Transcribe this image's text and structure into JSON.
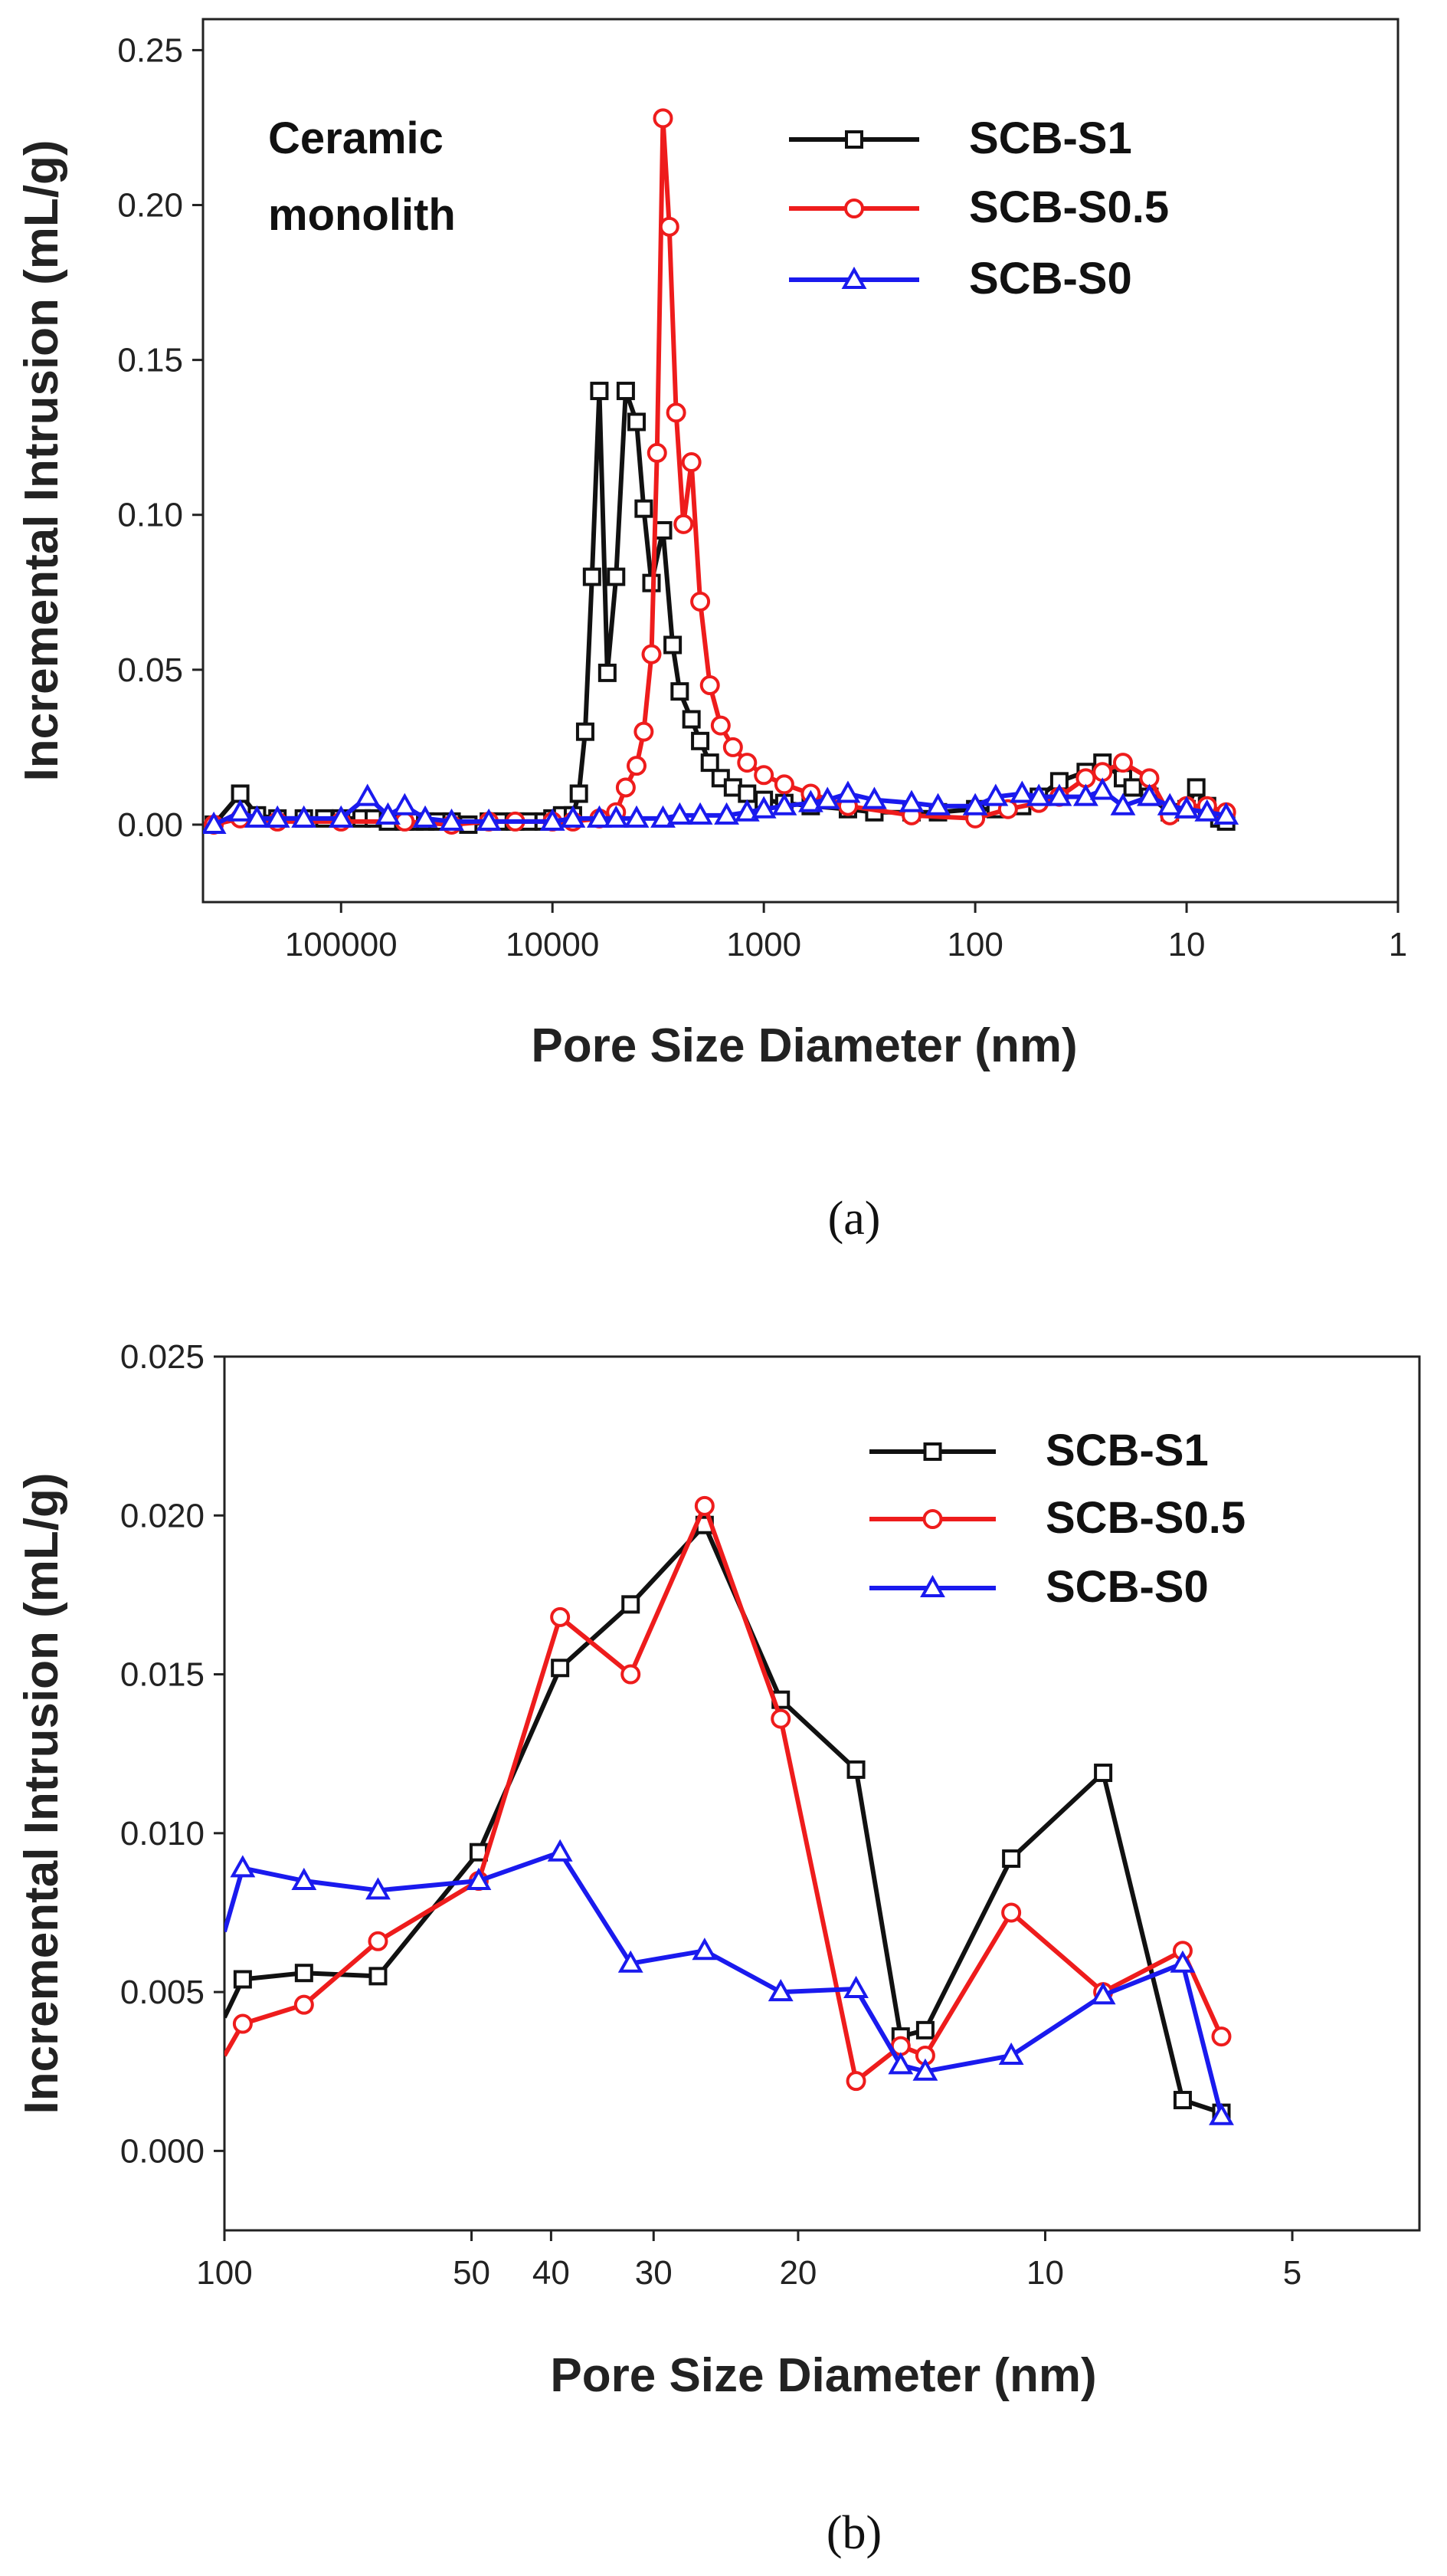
{
  "chart_data": [
    {
      "type": "line",
      "annotation": [
        "Ceramic",
        "monolith"
      ],
      "xlabel": "Pore Size Diameter (nm)",
      "ylabel": "Incremental Intrusion (mL/g)",
      "x_scale": "log-reversed",
      "xlim": [
        450000,
        1
      ],
      "ylim": [
        -0.025,
        0.26
      ],
      "xticks": [
        100000,
        10000,
        1000,
        100,
        10,
        1
      ],
      "xtick_labels": [
        "100000",
        "10000",
        "1000",
        "100",
        "10",
        "1"
      ],
      "yticks": [
        0.0,
        0.05,
        0.1,
        0.15,
        0.2,
        0.25
      ],
      "ytick_labels": [
        "0.00",
        "0.05",
        "0.10",
        "0.15",
        "0.20",
        "0.25"
      ],
      "panel_label": "(a)",
      "legend_position": "top-right",
      "series": [
        {
          "name": "SCB-S1",
          "color": "#111111",
          "marker": "square",
          "x": [
            400000,
            300000,
            250000,
            200000,
            150000,
            120000,
            100000,
            80000,
            70000,
            60000,
            50000,
            45000,
            40000,
            35000,
            30000,
            25000,
            20000,
            18000,
            15000,
            13000,
            11000,
            10000,
            9000,
            8000,
            7500,
            7000,
            6500,
            6000,
            5500,
            5000,
            4500,
            4000,
            3700,
            3400,
            3000,
            2700,
            2500,
            2200,
            2000,
            1800,
            1600,
            1400,
            1200,
            1000,
            800,
            600,
            400,
            300,
            200,
            150,
            100,
            80,
            60,
            50,
            40,
            30,
            25,
            20,
            18,
            15,
            12,
            10,
            9,
            8,
            7,
            6.5
          ],
          "y": [
            0.0,
            0.01,
            0.003,
            0.002,
            0.002,
            0.002,
            0.002,
            0.002,
            0.002,
            0.001,
            0.001,
            0.001,
            0.001,
            0.001,
            0.001,
            0.0,
            0.001,
            0.001,
            0.001,
            0.001,
            0.001,
            0.002,
            0.003,
            0.003,
            0.01,
            0.03,
            0.08,
            0.14,
            0.049,
            0.08,
            0.14,
            0.13,
            0.102,
            0.078,
            0.095,
            0.058,
            0.043,
            0.034,
            0.027,
            0.02,
            0.015,
            0.012,
            0.01,
            0.008,
            0.007,
            0.006,
            0.005,
            0.004,
            0.004,
            0.004,
            0.005,
            0.005,
            0.006,
            0.009,
            0.014,
            0.017,
            0.02,
            0.015,
            0.012,
            0.009,
            0.004,
            0.005,
            0.012,
            0.006,
            0.002,
            0.001
          ]
        },
        {
          "name": "SCB-S0.5",
          "color": "#ee1c1c",
          "marker": "circle",
          "x": [
            400000,
            300000,
            200000,
            100000,
            50000,
            30000,
            20000,
            15000,
            10000,
            8000,
            6000,
            5000,
            4500,
            4000,
            3700,
            3400,
            3200,
            3000,
            2800,
            2600,
            2400,
            2200,
            2000,
            1800,
            1600,
            1400,
            1200,
            1000,
            800,
            600,
            400,
            200,
            100,
            70,
            50,
            40,
            30,
            25,
            20,
            15,
            12,
            10,
            8,
            6.5
          ],
          "y": [
            0.0,
            0.002,
            0.001,
            0.001,
            0.001,
            0.0,
            0.001,
            0.001,
            0.001,
            0.001,
            0.002,
            0.004,
            0.012,
            0.019,
            0.03,
            0.055,
            0.12,
            0.228,
            0.193,
            0.133,
            0.097,
            0.117,
            0.072,
            0.045,
            0.032,
            0.025,
            0.02,
            0.016,
            0.013,
            0.01,
            0.006,
            0.003,
            0.002,
            0.005,
            0.007,
            0.009,
            0.015,
            0.017,
            0.02,
            0.015,
            0.003,
            0.006,
            0.006,
            0.004
          ]
        },
        {
          "name": "SCB-S0",
          "color": "#1a1aee",
          "marker": "triangle",
          "x": [
            400000,
            300000,
            250000,
            200000,
            150000,
            100000,
            75000,
            60000,
            50000,
            40000,
            30000,
            20000,
            10000,
            8000,
            6000,
            5000,
            4000,
            3000,
            2500,
            2000,
            1500,
            1200,
            1000,
            800,
            600,
            500,
            400,
            300,
            200,
            150,
            100,
            80,
            60,
            50,
            40,
            30,
            25,
            20,
            15,
            12,
            10,
            8,
            6.5
          ],
          "y": [
            0.0,
            0.004,
            0.002,
            0.002,
            0.002,
            0.002,
            0.009,
            0.003,
            0.006,
            0.002,
            0.001,
            0.001,
            0.001,
            0.002,
            0.002,
            0.002,
            0.002,
            0.002,
            0.003,
            0.003,
            0.003,
            0.004,
            0.005,
            0.006,
            0.007,
            0.008,
            0.01,
            0.008,
            0.007,
            0.006,
            0.006,
            0.009,
            0.01,
            0.009,
            0.009,
            0.009,
            0.011,
            0.006,
            0.009,
            0.006,
            0.005,
            0.004,
            0.003
          ]
        }
      ]
    },
    {
      "type": "line",
      "xlabel": "Pore Size Diameter (nm)",
      "ylabel": "Incremental Intrusion (mL/g)",
      "x_scale": "log-reversed",
      "xlim": [
        100,
        3.5
      ],
      "ylim": [
        -0.0025,
        0.025
      ],
      "xticks": [
        100,
        50,
        40,
        30,
        20,
        10,
        5
      ],
      "xtick_labels": [
        "100",
        "50",
        "40",
        "30",
        "20",
        "10",
        "5"
      ],
      "yticks": [
        0.0,
        0.005,
        0.01,
        0.015,
        0.02,
        0.025
      ],
      "ytick_labels": [
        "0.000",
        "0.005",
        "0.010",
        "0.015",
        "0.020",
        "0.025"
      ],
      "panel_label": "(b)",
      "legend_position": "top-right",
      "series": [
        {
          "name": "SCB-S1",
          "color": "#111111",
          "marker": "square",
          "x": [
            100,
            95,
            80,
            65,
            49,
            39,
            32,
            26,
            21,
            17,
            15,
            14,
            11,
            8.5,
            6.8,
            6.1
          ],
          "y": [
            0.0042,
            0.0054,
            0.0056,
            0.0055,
            0.0094,
            0.0152,
            0.0172,
            0.0197,
            0.0142,
            0.012,
            0.0036,
            0.0038,
            0.0092,
            0.0119,
            0.0016,
            0.0012
          ],
          "markers_from": 1
        },
        {
          "name": "SCB-S0.5",
          "color": "#ee1c1c",
          "marker": "circle",
          "x": [
            100,
            95,
            80,
            65,
            49,
            39,
            32,
            26,
            21,
            17,
            15,
            14,
            11,
            8.5,
            6.8,
            6.1
          ],
          "y": [
            0.003,
            0.004,
            0.0046,
            0.0066,
            0.0085,
            0.0168,
            0.015,
            0.0203,
            0.0136,
            0.0022,
            0.0033,
            0.003,
            0.0075,
            0.005,
            0.0063,
            0.0036
          ],
          "markers_from": 1
        },
        {
          "name": "SCB-S0",
          "color": "#1a1aee",
          "marker": "triangle",
          "x": [
            100,
            95,
            80,
            65,
            49,
            39,
            32,
            26,
            21,
            17,
            15,
            14,
            11,
            8.5,
            6.8,
            6.1
          ],
          "y": [
            0.0069,
            0.0089,
            0.0085,
            0.0082,
            0.0085,
            0.0094,
            0.0059,
            0.0063,
            0.005,
            0.0051,
            0.0027,
            0.0025,
            0.003,
            0.0049,
            0.0059,
            0.0011
          ],
          "markers_from": 1
        }
      ]
    }
  ]
}
